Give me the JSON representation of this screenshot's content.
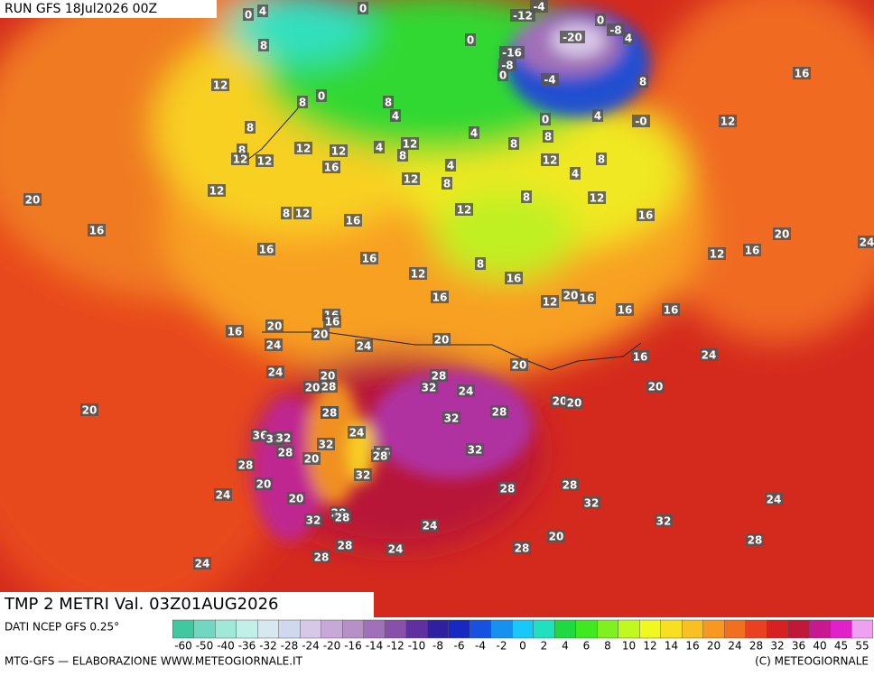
{
  "header": {
    "run": "RUN GFS 18Jul2026 00Z",
    "variable": "TMP 2 METRI Val. 03Z01AUG2026"
  },
  "footer": {
    "source": "DATI NCEP GFS 0.25°",
    "credit": "MTG-GFS — ELABORAZIONE WWW.METEOGIORNALE.IT",
    "copyright": "(C) METEOGIORNALE"
  },
  "legend": {
    "values": [
      -60,
      -50,
      -40,
      -36,
      -32,
      -28,
      -24,
      -20,
      -16,
      -14,
      -12,
      -10,
      -8,
      -6,
      -4,
      -2,
      0,
      2,
      4,
      6,
      8,
      10,
      12,
      14,
      16,
      20,
      24,
      28,
      32,
      36,
      40,
      45,
      55
    ],
    "colors": [
      "#40c8a0",
      "#70d8c0",
      "#a0e8d8",
      "#c0f0e8",
      "#d8e8f0",
      "#d0d8f0",
      "#d8c8e8",
      "#c8a8d8",
      "#b890c8",
      "#a070b8",
      "#8850a8",
      "#6030a0",
      "#3020a0",
      "#1828c0",
      "#1850e0",
      "#1890f0",
      "#18c8f8",
      "#20e0c0",
      "#20d840",
      "#40e820",
      "#80f020",
      "#c0f820",
      "#f0f820",
      "#f8e020",
      "#f8c020",
      "#f89820",
      "#f07020",
      "#e84020",
      "#d82020",
      "#c01838",
      "#c81890",
      "#e020c8",
      "#f0a0f0"
    ]
  },
  "map_labels": [
    0,
    4,
    0,
    8,
    12,
    8,
    0,
    8,
    4,
    8,
    8,
    12,
    12,
    12,
    12,
    16,
    4,
    12,
    8,
    4,
    12,
    8,
    4,
    8,
    0,
    8,
    12,
    4,
    8,
    12,
    8,
    12,
    -12,
    -4,
    0,
    -16,
    -8,
    0,
    -20,
    0,
    -8,
    4,
    -4,
    8,
    4,
    "-0",
    12,
    16,
    20,
    16,
    12,
    8,
    12,
    16,
    16,
    16,
    12,
    16,
    8,
    16,
    12,
    20,
    16,
    16,
    16,
    12,
    16,
    20,
    24,
    16,
    16,
    20,
    16,
    16,
    20,
    24,
    24,
    20,
    20,
    24,
    20,
    28,
    32,
    20,
    28,
    24,
    16,
    24,
    20,
    20,
    20,
    20,
    20,
    36,
    24,
    24,
    28,
    32,
    28,
    24,
    36,
    32,
    32,
    32,
    28,
    16,
    28,
    32,
    20,
    32,
    28,
    20,
    24,
    20,
    28,
    28,
    32,
    28,
    28,
    32,
    24,
    32,
    24,
    28,
    28,
    24,
    28,
    20,
    28,
    24
  ]
}
